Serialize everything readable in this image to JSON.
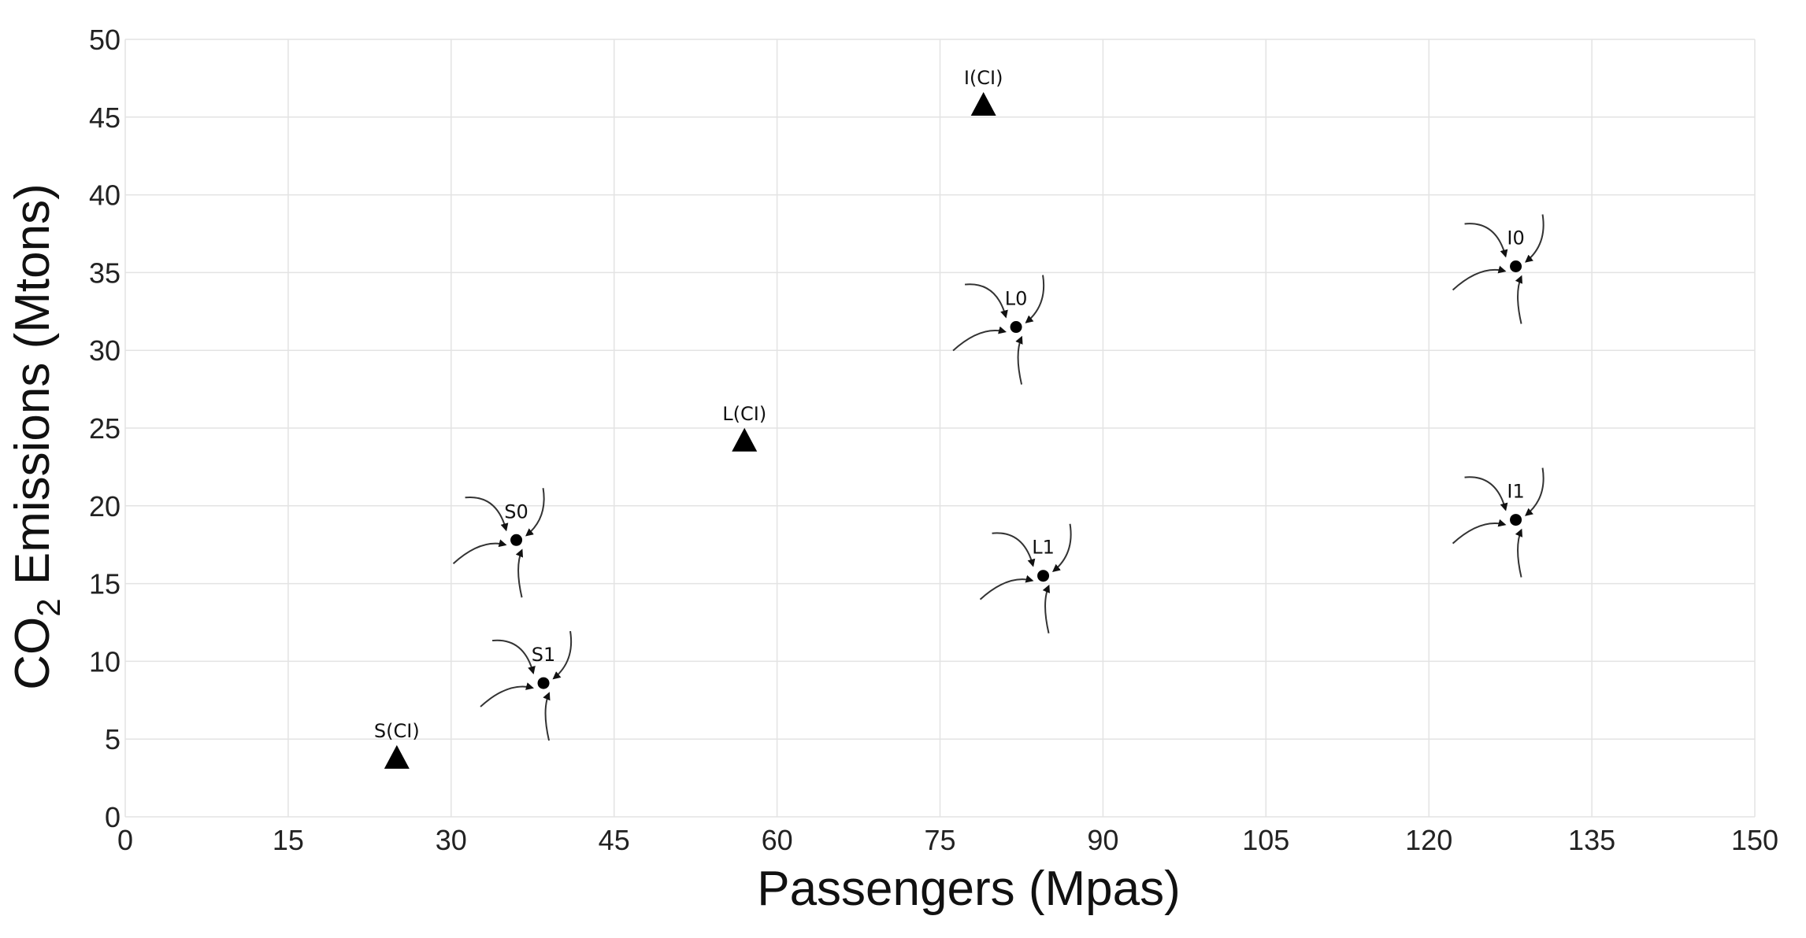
{
  "chart_data": {
    "type": "scatter",
    "xlabel": "Passengers (Mpas)",
    "ylabel": "CO2 Emissions (Mtons)",
    "ylabel_parts": {
      "main": "CO",
      "sub": "2",
      "rest": " Emissions (Mtons)"
    },
    "xlim": [
      0,
      150
    ],
    "ylim": [
      0,
      50
    ],
    "xticks": [
      0,
      15,
      30,
      45,
      60,
      75,
      90,
      105,
      120,
      135,
      150
    ],
    "yticks": [
      0,
      5,
      10,
      15,
      20,
      25,
      30,
      35,
      40,
      45,
      50
    ],
    "grid": true,
    "points": [
      {
        "label": "S(CI)",
        "x": 25,
        "y": 3.8,
        "marker": "triangle"
      },
      {
        "label": "L(CI)",
        "x": 57,
        "y": 24.2,
        "marker": "triangle"
      },
      {
        "label": "I(CI)",
        "x": 79,
        "y": 45.8,
        "marker": "triangle"
      },
      {
        "label": "S0",
        "x": 36,
        "y": 17.8,
        "marker": "circle-arrows"
      },
      {
        "label": "S1",
        "x": 38.5,
        "y": 8.6,
        "marker": "circle-arrows"
      },
      {
        "label": "L0",
        "x": 82,
        "y": 31.5,
        "marker": "circle-arrows"
      },
      {
        "label": "L1",
        "x": 84.5,
        "y": 15.5,
        "marker": "circle-arrows"
      },
      {
        "label": "I0",
        "x": 128,
        "y": 35.4,
        "marker": "circle-arrows"
      },
      {
        "label": "I1",
        "x": 128,
        "y": 19.1,
        "marker": "circle-arrows"
      }
    ]
  }
}
